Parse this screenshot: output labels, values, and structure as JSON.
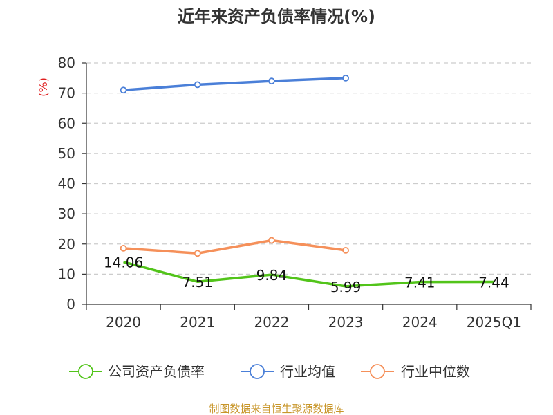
{
  "title": "近年来资产负债率情况(%)",
  "source": "制图数据来自恒生聚源数据库",
  "chart_data": {
    "type": "line",
    "title": "近年来资产负债率情况(%)",
    "ylabel": "(%)",
    "xlabel": "",
    "categories": [
      "2020",
      "2021",
      "2022",
      "2023",
      "2024",
      "2025Q1"
    ],
    "ylim": [
      0,
      80
    ],
    "yticks": [
      0,
      10,
      20,
      30,
      40,
      50,
      60,
      70,
      80
    ],
    "grid": true,
    "legend_position": "bottom",
    "series": [
      {
        "name": "公司资产负债率",
        "color": "#52c41a",
        "values": [
          14.06,
          7.51,
          9.84,
          5.99,
          7.41,
          7.44
        ],
        "labels": [
          "14.06",
          "7.51",
          "9.84",
          "5.99",
          "7.41",
          "7.44"
        ]
      },
      {
        "name": "行业均值",
        "color": "#4a7fd8",
        "values": [
          71,
          72.8,
          74,
          75,
          null,
          null
        ]
      },
      {
        "name": "行业中位数",
        "color": "#f5905a",
        "values": [
          18.6,
          16.9,
          21.2,
          17.9,
          null,
          null
        ]
      }
    ]
  }
}
